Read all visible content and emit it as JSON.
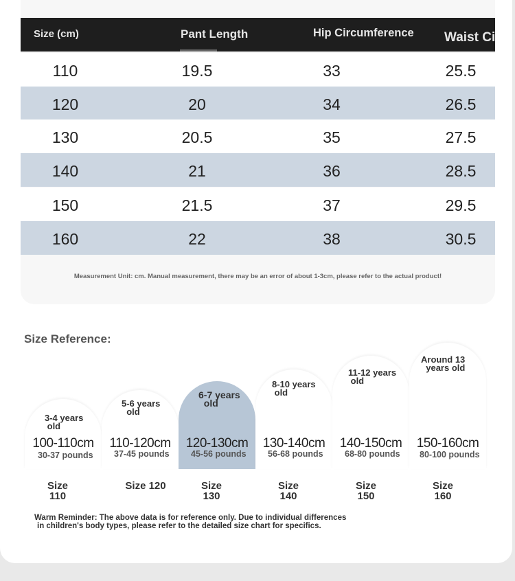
{
  "table": {
    "headers": [
      "Size (cm)",
      "Pant Length",
      "Hip Circumference",
      "Waist Circ"
    ],
    "rows": [
      [
        "110",
        "19.5",
        "33",
        "25.5"
      ],
      [
        "120",
        "20",
        "34",
        "26.5"
      ],
      [
        "130",
        "20.5",
        "35",
        "27.5"
      ],
      [
        "140",
        "21",
        "36",
        "28.5"
      ],
      [
        "150",
        "21.5",
        "37",
        "29.5"
      ],
      [
        "160",
        "22",
        "38",
        "30.5"
      ]
    ],
    "note": "Measurement Unit: cm. Manual measurement, there may be an error of about 1-3cm, please refer to the actual product!"
  },
  "reference": {
    "title": "Size Reference:",
    "items": [
      {
        "age_line1": "3-4 years",
        "age_line2": "old",
        "cm": "100-110cm",
        "pounds": "30-37 pounds",
        "size_line1": "Size",
        "size_line2": "110"
      },
      {
        "age_line1": "5-6 years",
        "age_line2": "old",
        "cm": "110-120cm",
        "pounds": "37-45 pounds",
        "size_line1": "Size 120",
        "size_line2": ""
      },
      {
        "age_line1": "6-7 years",
        "age_line2": "old",
        "cm": "120-130cm",
        "pounds": "45-56 pounds",
        "size_line1": "Size",
        "size_line2": "130"
      },
      {
        "age_line1": "8-10 years",
        "age_line2": "old",
        "cm": "130-140cm",
        "pounds": "56-68 pounds",
        "size_line1": "Size",
        "size_line2": "140"
      },
      {
        "age_line1": "11-12 years",
        "age_line2": "old",
        "cm": "140-150cm",
        "pounds": "68-80 pounds",
        "size_line1": "Size",
        "size_line2": "150"
      },
      {
        "age_line1": "Around 13",
        "age_line2": "years old",
        "cm": "150-160cm",
        "pounds": "80-100 pounds",
        "size_line1": "Size",
        "size_line2": "160"
      }
    ],
    "highlight_color": "#b7c6d6"
  },
  "reminder": {
    "line1": "Warm Reminder: The above data is for reference only. Due to individual differences",
    "line2": "in children's body types, please refer to the detailed size chart for specifics."
  }
}
